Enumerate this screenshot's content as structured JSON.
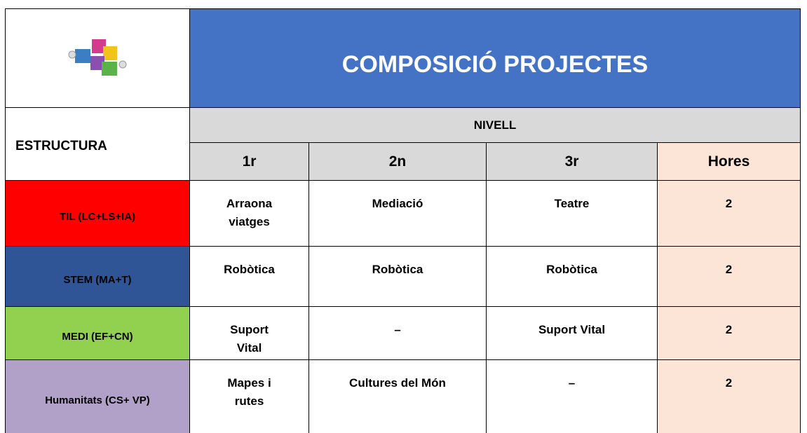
{
  "header": {
    "title": "COMPOSICIÓ PROJECTES",
    "structure": "ESTRUCTURA",
    "level": "NIVELL"
  },
  "table": {
    "columns": [
      "1r",
      "2n",
      "3r",
      "Hores"
    ],
    "rows": [
      {
        "label": "TIL (LC+LS+IA)",
        "color": "#ff0000",
        "cells": [
          "Arraona viatges",
          "Mediació",
          "Teatre",
          2
        ]
      },
      {
        "label": "STEM (MA+T)",
        "color": "#2f5597",
        "cells": [
          "Robòtica",
          "Robòtica",
          "Robòtica",
          2
        ]
      },
      {
        "label": "MEDI (EF+CN)",
        "color": "#92d050",
        "cells": [
          "Suport Vital",
          "–",
          "Suport Vital",
          2
        ]
      },
      {
        "label": "Humanitats (CS+ VP)",
        "color": "#b1a0c7",
        "cells": [
          "Mapes i rutes",
          "Cultures del Món",
          "–",
          2
        ]
      }
    ]
  }
}
